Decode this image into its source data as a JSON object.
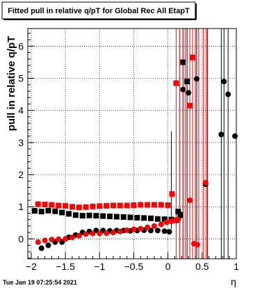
{
  "chart_data": {
    "type": "scatter",
    "title": "Fitted pull in relative q/pT  for Global Rec All EtapT",
    "xlabel": "η",
    "ylabel": "pull in relative q/pT",
    "timestamp": "Tue Jan 19 07:25:54 2021",
    "xlim": [
      -2.05,
      1.0
    ],
    "ylim": [
      -0.62,
      6.55
    ],
    "grid": true,
    "x_ticks": [
      -2,
      -1.5,
      -1,
      -0.5,
      0,
      0.5,
      1
    ],
    "x_tick_labels": [
      "−2",
      "−1.5",
      "−1",
      "−0.5",
      "0",
      "0.5",
      "1"
    ],
    "y_ticks": [
      0,
      1,
      2,
      3,
      4,
      5,
      6
    ],
    "y_tick_labels": [
      "0",
      "1",
      "2",
      "3",
      "4",
      "5",
      "6"
    ],
    "series": [
      {
        "color": "#000000",
        "marker": "square",
        "points": [
          [
            -1.95,
            0.87
          ],
          [
            -1.85,
            0.85
          ],
          [
            -1.75,
            0.88
          ],
          [
            -1.65,
            0.86
          ],
          [
            -1.55,
            0.82
          ],
          [
            -1.45,
            0.78
          ],
          [
            -1.35,
            0.74
          ],
          [
            -1.25,
            0.72
          ],
          [
            -1.15,
            0.73
          ],
          [
            -1.05,
            0.72
          ],
          [
            -0.95,
            0.71
          ],
          [
            -0.85,
            0.7
          ],
          [
            -0.75,
            0.69
          ],
          [
            -0.65,
            0.68
          ],
          [
            -0.55,
            0.67
          ],
          [
            -0.45,
            0.66
          ],
          [
            -0.35,
            0.65
          ],
          [
            -0.25,
            0.64
          ],
          [
            -0.15,
            0.62
          ],
          [
            -0.05,
            0.61
          ],
          [
            0.05,
            0.6
          ],
          [
            0.12,
            0.58
          ],
          [
            0.15,
            0.85
          ],
          [
            0.18,
            0.75
          ],
          [
            0.22,
            5.5
          ],
          [
            0.28,
            4.9
          ]
        ]
      },
      {
        "color": "#000000",
        "marker": "circle",
        "points": [
          [
            -1.95,
            0.88
          ],
          [
            -1.85,
            -0.29
          ],
          [
            -1.75,
            -0.2
          ],
          [
            -1.65,
            -0.1
          ],
          [
            -1.55,
            -0.1
          ],
          [
            -1.45,
            0.05
          ],
          [
            -1.35,
            0.12
          ],
          [
            -1.25,
            0.2
          ],
          [
            -1.15,
            0.23
          ],
          [
            -1.05,
            0.26
          ],
          [
            -0.95,
            0.26
          ],
          [
            -0.85,
            0.25
          ],
          [
            -0.75,
            0.26
          ],
          [
            -0.65,
            0.26
          ],
          [
            -0.55,
            0.25
          ],
          [
            -0.45,
            0.26
          ],
          [
            -0.35,
            0.27
          ],
          [
            -0.25,
            0.26
          ],
          [
            -0.15,
            0.26
          ],
          [
            -0.05,
            0.24
          ],
          [
            0.02,
            0.22
          ],
          [
            0.18,
            0.72
          ],
          [
            0.22,
            4.65
          ],
          [
            0.3,
            4.55
          ],
          [
            0.42,
            4.98
          ],
          [
            0.55,
            1.7
          ],
          [
            0.78,
            3.25
          ],
          [
            0.82,
            4.9
          ],
          [
            0.88,
            4.5
          ],
          [
            0.98,
            3.2
          ]
        ]
      },
      {
        "color": "#ff0000",
        "marker": "square",
        "points": [
          [
            -1.9,
            1.08
          ],
          [
            -1.8,
            1.07
          ],
          [
            -1.7,
            1.06
          ],
          [
            -1.6,
            1.04
          ],
          [
            -1.5,
            1.03
          ],
          [
            -1.4,
            1.0
          ],
          [
            -1.3,
            0.98
          ],
          [
            -1.2,
            0.99
          ],
          [
            -1.1,
            1.01
          ],
          [
            -1.0,
            1.02
          ],
          [
            -0.9,
            1.03
          ],
          [
            -0.8,
            1.04
          ],
          [
            -0.7,
            1.04
          ],
          [
            -0.6,
            1.04
          ],
          [
            -0.5,
            1.05
          ],
          [
            -0.4,
            1.06
          ],
          [
            -0.3,
            1.06
          ],
          [
            -0.2,
            1.06
          ],
          [
            -0.1,
            1.06
          ],
          [
            0.0,
            1.05
          ],
          [
            0.06,
            1.4
          ],
          [
            0.12,
            4.85
          ],
          [
            0.32,
            4.15
          ],
          [
            0.36,
            5.65
          ]
        ]
      },
      {
        "color": "#ff0000",
        "marker": "circle",
        "points": [
          [
            -1.9,
            -0.1
          ],
          [
            -1.8,
            -0.05
          ],
          [
            -1.7,
            -0.02
          ],
          [
            -1.6,
            -0.01
          ],
          [
            -1.5,
            0.0
          ],
          [
            -1.4,
            0.05
          ],
          [
            -1.3,
            0.1
          ],
          [
            -1.2,
            0.15
          ],
          [
            -1.1,
            0.17
          ],
          [
            -1.0,
            0.17
          ],
          [
            -0.9,
            0.18
          ],
          [
            -0.8,
            0.2
          ],
          [
            -0.7,
            0.23
          ],
          [
            -0.6,
            0.27
          ],
          [
            -0.5,
            0.3
          ],
          [
            -0.4,
            0.32
          ],
          [
            -0.3,
            0.36
          ],
          [
            -0.2,
            0.4
          ],
          [
            -0.1,
            0.45
          ],
          [
            -0.02,
            0.52
          ],
          [
            0.05,
            0.55
          ],
          [
            0.1,
            0.58
          ],
          [
            0.15,
            0.6
          ],
          [
            0.32,
            1.2
          ],
          [
            0.38,
            -0.15
          ],
          [
            0.43,
            -0.18
          ],
          [
            0.55,
            1.75
          ]
        ]
      }
    ],
    "error_bars": [
      {
        "color": "#000000",
        "x": 0.05,
        "y0": 0.3,
        "y1": 3.35
      },
      {
        "color": "#000000",
        "x": 0.22,
        "y0": -0.62,
        "y1": 6.55
      },
      {
        "color": "#000000",
        "x": 0.28,
        "y0": -0.62,
        "y1": 6.55
      },
      {
        "color": "#000000",
        "x": 0.42,
        "y0": -0.62,
        "y1": 6.55
      },
      {
        "color": "#000000",
        "x": 0.58,
        "y0": -0.62,
        "y1": 6.55
      },
      {
        "color": "#000000",
        "x": 0.78,
        "y0": -0.62,
        "y1": 6.55
      },
      {
        "color": "#000000",
        "x": 0.82,
        "y0": -0.62,
        "y1": 6.55
      },
      {
        "color": "#000000",
        "x": 0.88,
        "y0": -0.62,
        "y1": 6.55
      },
      {
        "color": "#ff0000",
        "x": 0.12,
        "y0": -0.62,
        "y1": 6.55
      },
      {
        "color": "#ff0000",
        "x": 0.17,
        "y0": -0.62,
        "y1": 6.55
      },
      {
        "color": "#ff0000",
        "x": 0.25,
        "y0": -0.62,
        "y1": 6.55
      },
      {
        "color": "#ff0000",
        "x": 0.32,
        "y0": -0.62,
        "y1": 6.55
      },
      {
        "color": "#ff0000",
        "x": 0.36,
        "y0": -0.62,
        "y1": 6.55
      },
      {
        "color": "#ff0000",
        "x": 0.4,
        "y0": -0.62,
        "y1": 6.55
      },
      {
        "color": "#ff0000",
        "x": 0.45,
        "y0": -0.62,
        "y1": 6.55
      },
      {
        "color": "#ff0000",
        "x": 0.52,
        "y0": -0.62,
        "y1": 6.55
      },
      {
        "color": "#ff0000",
        "x": 0.56,
        "y0": -0.62,
        "y1": 6.55
      }
    ]
  }
}
